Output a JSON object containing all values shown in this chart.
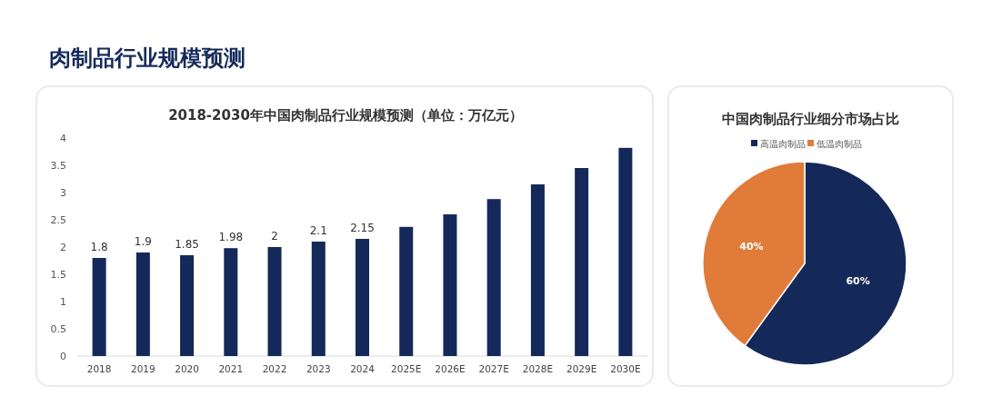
{
  "chart_data": [
    {
      "type": "bar",
      "title": "2018-2030年中国肉制品行业规模预测（单位：万亿元）",
      "annotations": [
        "肉制品行业规模预测"
      ],
      "categories": [
        "2018",
        "2019",
        "2020",
        "2021",
        "2022",
        "2023",
        "2024",
        "2025E",
        "2026E",
        "2027E",
        "2028E",
        "2029E",
        "2030E"
      ],
      "values": [
        1.8,
        1.9,
        1.85,
        1.98,
        2,
        2.1,
        2.15,
        2.37,
        2.6,
        2.88,
        3.15,
        3.45,
        3.82
      ],
      "value_labels": [
        "1.8",
        "1.9",
        "1.85",
        "1.98",
        "2",
        "2.1",
        "2.15",
        null,
        null,
        null,
        null,
        null,
        null
      ],
      "color": "#14295a",
      "ylim": [
        0,
        4
      ],
      "yticks": [
        0,
        0.5,
        1,
        1.5,
        2,
        2.5,
        3,
        3.5,
        4
      ]
    },
    {
      "type": "pie",
      "title": "中国肉制品行业细分市场占比",
      "categories": [
        "高温肉制品",
        "低温肉制品"
      ],
      "values": [
        60,
        40
      ],
      "colors": [
        "#14295a",
        "#e07b39"
      ],
      "value_labels": [
        "60%",
        "40%"
      ],
      "legend": "top"
    }
  ]
}
